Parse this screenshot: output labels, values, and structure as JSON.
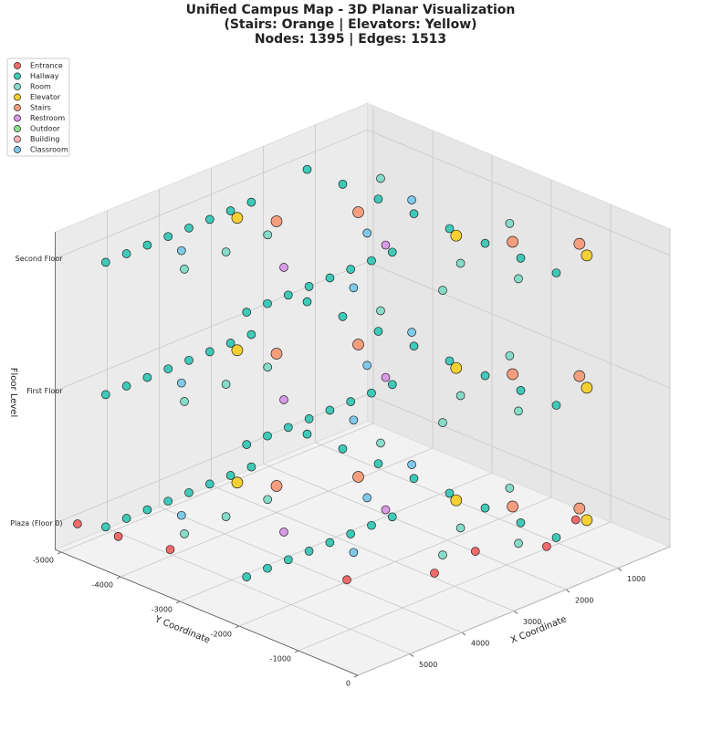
{
  "chart_data": {
    "type": "scatter3d",
    "title": "Unified Campus Map - 3D Planar Visualization",
    "subtitle_lines": [
      "(Stairs: Orange | Elevators: Yellow)",
      "Nodes: 1395 | Edges: 1513"
    ],
    "x_label": "X Coordinate",
    "y_label": "Y Coordinate",
    "z_label": "Floor Level",
    "xlim": [
      0,
      6000
    ],
    "ylim": [
      -5100,
      0
    ],
    "zlim": [
      -0.2,
      2.2
    ],
    "xticks": [
      1000,
      2000,
      3000,
      4000,
      5000
    ],
    "yticks": [
      -5000,
      -4000,
      -3000,
      -2000,
      -1000,
      0
    ],
    "zticks": [
      {
        "value": 0,
        "label": "Plaza (Floor 0)"
      },
      {
        "value": 1,
        "label": "First Floor"
      },
      {
        "value": 2,
        "label": "Second Floor"
      }
    ],
    "grid": true,
    "legend": "upper left",
    "series": [
      {
        "name": "Entrance",
        "color": "#f26b6b",
        "x": [
          5800,
          5700,
          4500,
          3500,
          2600,
          1800,
          900,
          5500
        ],
        "y": [
          -4900,
          -4300,
          -1500,
          -900,
          -1000,
          -500,
          -800,
          -3600
        ],
        "z": [
          0,
          0,
          0,
          0,
          0,
          0,
          0,
          0
        ]
      },
      {
        "name": "Hallway",
        "color": "#3fc9b8",
        "x": [
          5600,
          5200,
          4800,
          4400,
          4000,
          3600,
          3200,
          2800,
          5400,
          5000,
          4600,
          4200,
          3800,
          3400,
          3000,
          2600,
          1500,
          1500,
          1500,
          1500,
          1500,
          1500,
          1500,
          1500,
          5600,
          5200,
          4800,
          4400,
          4000,
          3600,
          3200,
          2800,
          5400,
          5000,
          4600,
          4200,
          3800,
          3400,
          3000,
          2600,
          1500,
          1500,
          1500,
          1500,
          1500,
          1500,
          1500,
          1500,
          5600,
          5200,
          4800,
          4400,
          4000,
          3600,
          3200,
          2800,
          5400,
          5000,
          4600,
          4200,
          3800,
          3400,
          3000,
          2600,
          1500,
          1500,
          1500,
          1500,
          1500,
          1500,
          1500,
          1500
        ],
        "y": [
          -4600,
          -4600,
          -4600,
          -4600,
          -4600,
          -4600,
          -4600,
          -4600,
          -2400,
          -2400,
          -2400,
          -2400,
          -2400,
          -2400,
          -2400,
          -2400,
          -4800,
          -4200,
          -3600,
          -3000,
          -2400,
          -1800,
          -1200,
          -600,
          -4600,
          -4600,
          -4600,
          -4600,
          -4600,
          -4600,
          -4600,
          -4600,
          -2400,
          -2400,
          -2400,
          -2400,
          -2400,
          -2400,
          -2400,
          -2400,
          -4800,
          -4200,
          -3600,
          -3000,
          -2400,
          -1800,
          -1200,
          -600,
          -4600,
          -4600,
          -4600,
          -4600,
          -4600,
          -4600,
          -4600,
          -4600,
          -2400,
          -2400,
          -2400,
          -2400,
          -2400,
          -2400,
          -2400,
          -2400,
          -4800,
          -4200,
          -3600,
          -3000,
          -2400,
          -1800,
          -1200,
          -600
        ],
        "z": [
          0,
          0,
          0,
          0,
          0,
          0,
          0,
          0,
          0,
          0,
          0,
          0,
          0,
          0,
          0,
          0,
          0,
          0,
          0,
          0,
          0,
          0,
          0,
          0,
          1,
          1,
          1,
          1,
          1,
          1,
          1,
          1,
          1,
          1,
          1,
          1,
          1,
          1,
          1,
          1,
          1,
          1,
          1,
          1,
          1,
          1,
          1,
          1,
          2,
          2,
          2,
          2,
          2,
          2,
          2,
          2,
          2,
          2,
          2,
          2,
          2,
          2,
          2,
          2,
          2,
          2,
          2,
          2,
          2,
          2,
          2,
          2
        ]
      },
      {
        "name": "Room",
        "color": "#86dcc8",
        "x": [
          5000,
          4200,
          3400,
          2200,
          1000,
          800,
          2000,
          3000,
          5000,
          4200,
          3400,
          2200,
          1000,
          800,
          2000,
          3000,
          5000,
          4200,
          3400,
          2200,
          1000,
          800,
          2000,
          3000
        ],
        "y": [
          -3800,
          -3800,
          -3800,
          -1600,
          -4000,
          -2000,
          -800,
          -1200,
          -3800,
          -3800,
          -3800,
          -1600,
          -4000,
          -2000,
          -800,
          -1200,
          -3800,
          -3800,
          -3800,
          -1600,
          -4000,
          -2000,
          -800,
          -1200
        ],
        "z": [
          0,
          0,
          0,
          0,
          0,
          0,
          0,
          0,
          1,
          1,
          1,
          1,
          1,
          1,
          1,
          1,
          2,
          2,
          2,
          2,
          2,
          2,
          2,
          2
        ]
      },
      {
        "name": "Elevator",
        "color": "#f5d033",
        "x": [
          3300,
          1600,
          800,
          3300,
          1600,
          800,
          3300,
          1600,
          800
        ],
        "y": [
          -4400,
          -2200,
          -700,
          -4400,
          -2200,
          -700,
          -4400,
          -2200,
          -700
        ],
        "z": [
          0,
          0,
          0,
          1,
          1,
          1,
          2,
          2,
          2
        ]
      },
      {
        "name": "Stairs",
        "color": "#f59e7e",
        "x": [
          3000,
          2000,
          1200,
          600,
          3000,
          2000,
          1200,
          600,
          3000,
          2000,
          1200,
          600
        ],
        "y": [
          -4000,
          -3500,
          -1600,
          -1000,
          -4000,
          -3500,
          -1600,
          -1000,
          -4000,
          -3500,
          -1600,
          -1000
        ],
        "z": [
          0,
          0,
          0,
          0,
          1,
          1,
          1,
          1,
          2,
          2,
          2,
          2
        ]
      },
      {
        "name": "Restroom",
        "color": "#d99ae6",
        "x": [
          4000,
          2500,
          4000,
          2500,
          4000,
          2500
        ],
        "y": [
          -3000,
          -2600,
          -3000,
          -2600,
          -3000,
          -2600
        ],
        "z": [
          0,
          0,
          1,
          1,
          2,
          2
        ]
      },
      {
        "name": "Outdoor",
        "color": "#8fe38f",
        "x": [],
        "y": [],
        "z": []
      },
      {
        "name": "Building",
        "color": "#f7b2b8",
        "x": [],
        "y": [],
        "z": []
      },
      {
        "name": "Classroom",
        "color": "#7fc9ea",
        "x": [
          4600,
          3800,
          1200,
          2400,
          4600,
          3800,
          1200,
          2400,
          4600,
          3800,
          1200,
          2400
        ],
        "y": [
          -4200,
          -2000,
          -3300,
          -3000,
          -4200,
          -2000,
          -3300,
          -3000,
          -4200,
          -2000,
          -3300,
          -3000
        ],
        "z": [
          0,
          0,
          0,
          0,
          1,
          1,
          1,
          1,
          2,
          2,
          2,
          2
        ]
      }
    ]
  }
}
